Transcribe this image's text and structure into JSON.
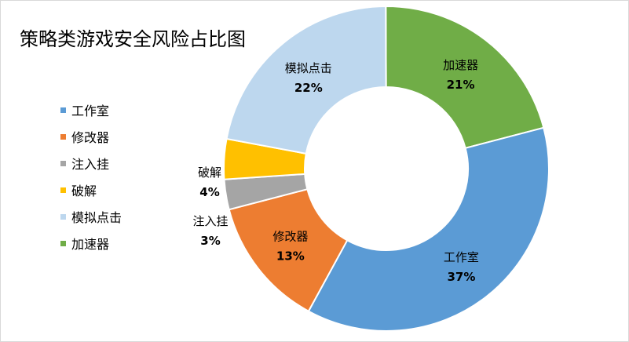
{
  "chart_data": {
    "type": "pie",
    "title": "策略类游戏安全风险占比图",
    "categories": [
      "工作室",
      "修改器",
      "注入挂",
      "破解",
      "模拟点击",
      "加速器"
    ],
    "values": [
      37,
      13,
      3,
      4,
      22,
      21
    ],
    "labels": [
      "37%",
      "13%",
      "3%",
      "4%",
      "22%",
      "21%"
    ],
    "colors": [
      "#5b9bd5",
      "#ed7d31",
      "#a5a5a5",
      "#ffc000",
      "#bdd7ee",
      "#70ad47"
    ],
    "legend_position": "left",
    "grid": false
  }
}
